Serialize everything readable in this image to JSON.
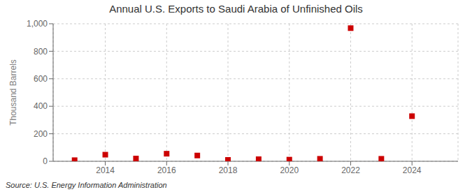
{
  "chart_data": {
    "type": "scatter",
    "title": "Annual U.S. Exports to Saudi Arabia of Unfinished Oils",
    "y_label": "Thousand Barrels",
    "annotations": [
      "Source: U.S. Energy Information Administration"
    ],
    "x": [
      2013,
      2014,
      2015,
      2016,
      2017,
      2018,
      2019,
      2020,
      2021,
      2022,
      2023,
      2024
    ],
    "values": [
      8,
      48,
      20,
      55,
      42,
      10,
      15,
      12,
      18,
      968,
      18,
      328
    ],
    "color": "#cc0000",
    "marker": "square",
    "xlim": [
      2012.3,
      2025.5
    ],
    "xticks": [
      2014,
      2016,
      2018,
      2020,
      2022,
      2024
    ],
    "ylim": [
      0,
      1000
    ],
    "yticks": [
      0,
      200,
      400,
      600,
      800,
      {
        "value": 1000,
        "label": "1,000"
      }
    ],
    "grid": true
  }
}
